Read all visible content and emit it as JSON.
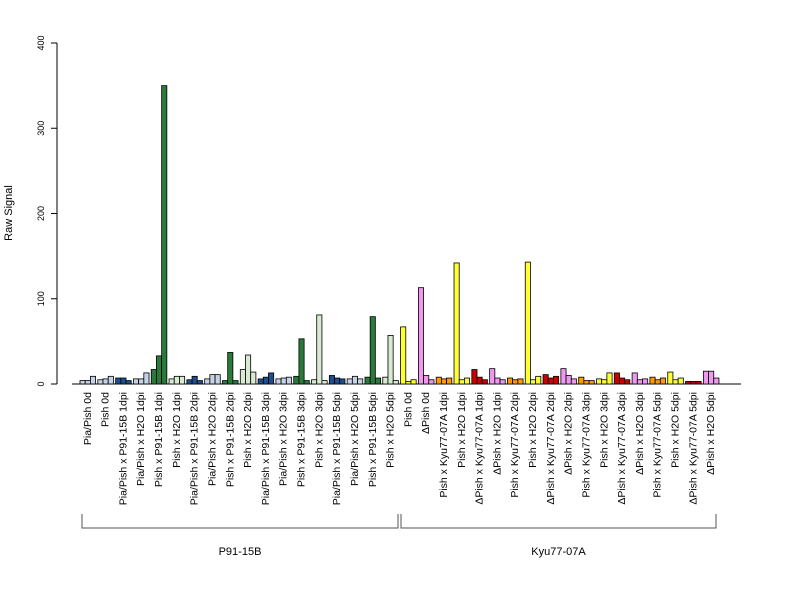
{
  "chart_data": {
    "type": "bar",
    "ylabel": "Raw Signal",
    "xlabel": "",
    "ylim": [
      0,
      400
    ],
    "yticks": [
      "0",
      "100",
      "200",
      "300",
      "400"
    ],
    "grid": false,
    "categories": [
      "Pia/Pish 0d",
      "Pish 0d",
      "Pia/Pish x P91-15B 1dpi",
      "Pia/Pish x H2O 1dpi",
      "Pish x P91-15B 1dpi",
      "Pish x H2O 1dpi",
      "Pia/Pish x P91-15B 2dpi",
      "Pia/Pish x H2O 2dpi",
      "Pish x P91-15B 2dpi",
      "Pish x H2O 2dpi",
      "Pia/Pish x P91-15B 3dpi",
      "Pia/Pish x H2O 3dpi",
      "Pish x P91-15B 3dpi",
      "Pish x H2O 3dpi",
      "Pia/Pish x P91-15B 5dpi",
      "Pia/Pish x H2O 5dpi",
      "Pish x P91-15B 5dpi",
      "Pish x H2O 5dpi",
      "Pish 0d",
      "ΔPish 0d",
      "Pish x Kyu77-07A 1dpi",
      "Pish x H2O 1dpi",
      "ΔPish x Kyu77-07A 1dpi",
      "ΔPish x H2O 1dpi",
      "Pish x Kyu77-07A 2dpi",
      "Pish x H2O 2dpi",
      "ΔPish x Kyu77-07A 2dpi",
      "ΔPish x H2O 2dpi",
      "Pish x Kyu77-07A 3dpi",
      "Pish x H2O 3dpi",
      "ΔPish x Kyu77-07A 3dpi",
      "ΔPish x H2O 3dpi",
      "Pish x Kyu77-07A 5dpi",
      "Pish x H2O 5dpi",
      "ΔPish x Kyu77-07A 5dpi",
      "ΔPish x H2O 5dpi"
    ],
    "colors": [
      "#c6d3e6",
      "#c6d3e6",
      "#1f4e8c",
      "#c6d3e6",
      "#2a7a3b",
      "#d9ead3",
      "#1f4e8c",
      "#c6d3e6",
      "#2a7a3b",
      "#d9ead3",
      "#1f4e8c",
      "#c6d3e6",
      "#2a7a3b",
      "#d9ead3",
      "#1f4e8c",
      "#c6d3e6",
      "#2a7a3b",
      "#d9ead3",
      "#ffff33",
      "#ee99ee",
      "#ff9900",
      "#ffff33",
      "#cc0000",
      "#ee99ee",
      "#ff9900",
      "#ffff33",
      "#cc0000",
      "#ee99ee",
      "#ff9900",
      "#ffff33",
      "#cc0000",
      "#ee99ee",
      "#ff9900",
      "#ffff33",
      "#cc0000",
      "#ee99ee"
    ],
    "values": [
      [
        4,
        4,
        9
      ],
      [
        5,
        6,
        9
      ],
      [
        7,
        7,
        4
      ],
      [
        6,
        6,
        13
      ],
      [
        17,
        33,
        350
      ],
      [
        6,
        9,
        9
      ],
      [
        5,
        9,
        4
      ],
      [
        6,
        11,
        11
      ],
      [
        4,
        37,
        4
      ],
      [
        17,
        34,
        14
      ],
      [
        6,
        8,
        13
      ],
      [
        6,
        7,
        8
      ],
      [
        9,
        53,
        4
      ],
      [
        5,
        81,
        4
      ],
      [
        10,
        7,
        6
      ],
      [
        6,
        9,
        6
      ],
      [
        8,
        79,
        7
      ],
      [
        8,
        57,
        4
      ],
      [
        67,
        3,
        5
      ],
      [
        113,
        10,
        5
      ],
      [
        8,
        6,
        7
      ],
      [
        142,
        5,
        7
      ],
      [
        17,
        8,
        5
      ],
      [
        18,
        7,
        5
      ],
      [
        7,
        5,
        6
      ],
      [
        143,
        5,
        9
      ],
      [
        11,
        7,
        9
      ],
      [
        18,
        10,
        6
      ],
      [
        8,
        4,
        4
      ],
      [
        6,
        5,
        13
      ],
      [
        13,
        7,
        5
      ],
      [
        13,
        5,
        6
      ],
      [
        8,
        5,
        7
      ],
      [
        14,
        5,
        7
      ],
      [
        3,
        3,
        3
      ],
      [
        15,
        15,
        7
      ]
    ],
    "groups": [
      {
        "label": "P91-15B",
        "from": 0,
        "to": 17
      },
      {
        "label": "Kyu77-07A",
        "from": 18,
        "to": 35
      }
    ]
  }
}
